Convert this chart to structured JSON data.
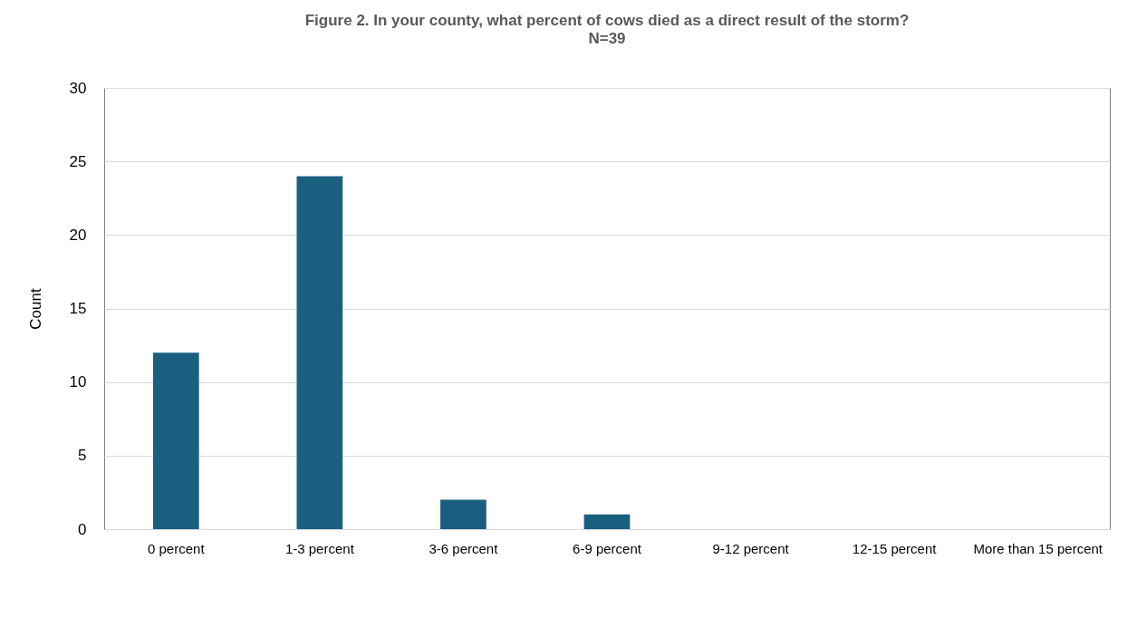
{
  "chart_data": {
    "type": "bar",
    "title": "Figure 2. In your county, what percent of cows died as a direct result of the storm?",
    "subtitle": "N=39",
    "ylabel": "Count",
    "categories": [
      "0 percent",
      "1-3 percent",
      "3-6 percent",
      "6-9 percent",
      "9-12 percent",
      "12-15 percent",
      "More than 15 percent"
    ],
    "values": [
      12,
      24,
      2,
      1,
      0,
      0,
      0
    ],
    "color": "#1a5f80",
    "ylim": [
      0,
      30
    ],
    "yticks": [
      0,
      5,
      10,
      15,
      20,
      25,
      30
    ],
    "grid": "y"
  }
}
